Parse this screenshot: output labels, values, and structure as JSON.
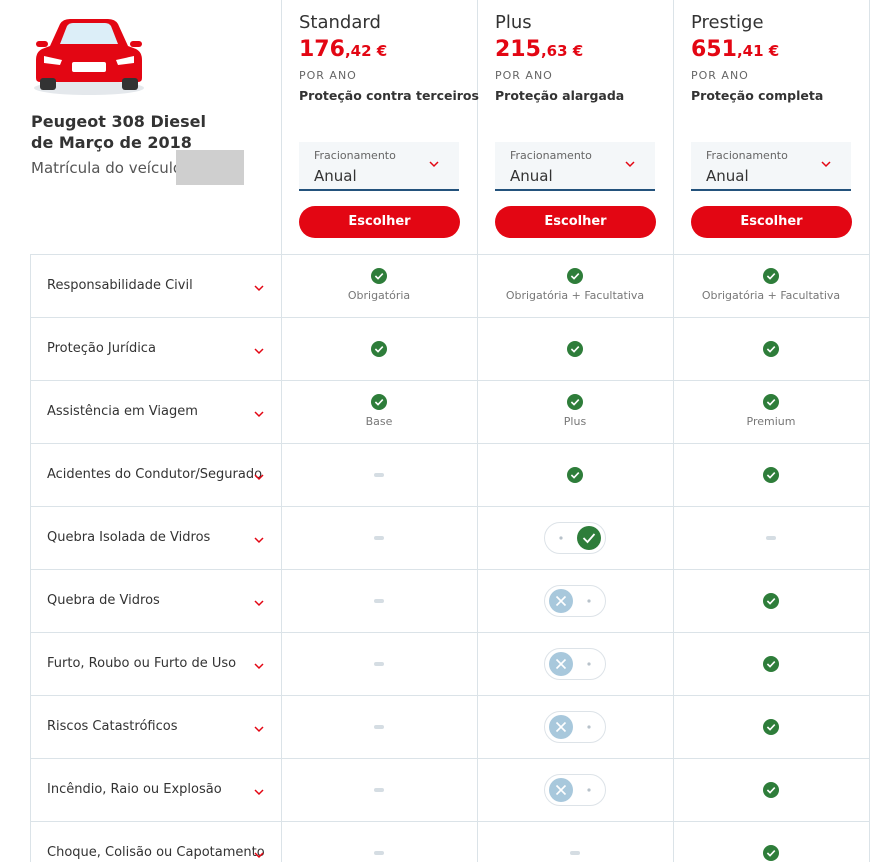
{
  "vehicle": {
    "model": "Peugeot 308 Diesel",
    "date": "de Março de 2018",
    "plate_label": "Matrícula do veículo:"
  },
  "plans": [
    {
      "name": "Standard",
      "price_int": "176",
      "price_dec": ",42 €",
      "period": "POR ANO",
      "coverage": "Proteção contra terceiros",
      "select_label": "Fracionamento",
      "select_value": "Anual",
      "button": "Escolher"
    },
    {
      "name": "Plus",
      "price_int": "215",
      "price_dec": ",63 €",
      "period": "POR ANO",
      "coverage": "Proteção alargada",
      "select_label": "Fracionamento",
      "select_value": "Anual",
      "button": "Escolher"
    },
    {
      "name": "Prestige",
      "price_int": "651",
      "price_dec": ",41 €",
      "period": "POR ANO",
      "coverage": "Proteção completa",
      "select_label": "Fracionamento",
      "select_value": "Anual",
      "button": "Escolher"
    }
  ],
  "rows": [
    {
      "label": "Responsabilidade Civil",
      "cells": [
        {
          "state": "check",
          "note": "Obrigatória"
        },
        {
          "state": "check",
          "note": "Obrigatória + Facultativa"
        },
        {
          "state": "check",
          "note": "Obrigatória + Facultativa"
        }
      ]
    },
    {
      "label": "Proteção Jurídica",
      "cells": [
        {
          "state": "check"
        },
        {
          "state": "check"
        },
        {
          "state": "check"
        }
      ]
    },
    {
      "label": "Assistência em Viagem",
      "cells": [
        {
          "state": "check",
          "note": "Base"
        },
        {
          "state": "check",
          "note": "Plus"
        },
        {
          "state": "check",
          "note": "Premium"
        }
      ]
    },
    {
      "label": "Acidentes do Condutor/Segurado",
      "cells": [
        {
          "state": "none"
        },
        {
          "state": "check"
        },
        {
          "state": "check"
        }
      ]
    },
    {
      "label": "Quebra Isolada de Vidros",
      "cells": [
        {
          "state": "none"
        },
        {
          "state": "toggle-on"
        },
        {
          "state": "none"
        }
      ]
    },
    {
      "label": "Quebra de Vidros",
      "cells": [
        {
          "state": "none"
        },
        {
          "state": "toggle-off"
        },
        {
          "state": "check"
        }
      ]
    },
    {
      "label": "Furto, Roubo ou Furto de Uso",
      "cells": [
        {
          "state": "none"
        },
        {
          "state": "toggle-off"
        },
        {
          "state": "check"
        }
      ]
    },
    {
      "label": "Riscos Catastróficos",
      "cells": [
        {
          "state": "none"
        },
        {
          "state": "toggle-off"
        },
        {
          "state": "check"
        }
      ]
    },
    {
      "label": "Incêndio, Raio ou Explosão",
      "cells": [
        {
          "state": "none"
        },
        {
          "state": "toggle-off"
        },
        {
          "state": "check"
        }
      ]
    },
    {
      "label": "Choque, Colisão ou Capotamento",
      "cells": [
        {
          "state": "none"
        },
        {
          "state": "none"
        },
        {
          "state": "check"
        }
      ]
    }
  ]
}
